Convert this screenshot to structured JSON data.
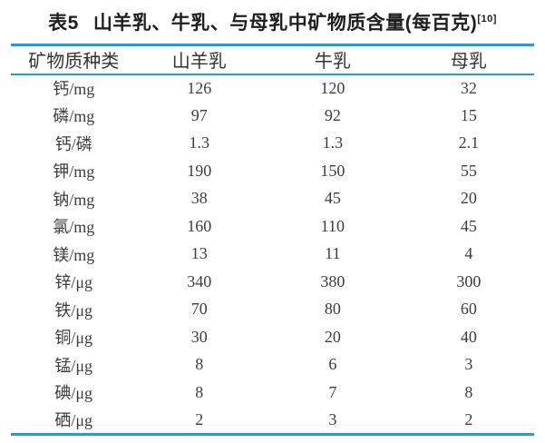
{
  "caption": {
    "prefix": "表5",
    "title": "山羊乳、牛乳、与母乳中矿物质含量(每百克)",
    "citation": "[10]"
  },
  "table": {
    "columns": [
      "矿物质种类",
      "山羊乳",
      "牛乳",
      "母乳"
    ],
    "rows": [
      {
        "label": "钙/mg",
        "values": [
          "126",
          "120",
          "32"
        ]
      },
      {
        "label": "磷/mg",
        "values": [
          "97",
          "92",
          "15"
        ]
      },
      {
        "label": "钙/磷",
        "values": [
          "1.3",
          "1.3",
          "2.1"
        ]
      },
      {
        "label": "钾/mg",
        "values": [
          "190",
          "150",
          "55"
        ]
      },
      {
        "label": "钠/mg",
        "values": [
          "38",
          "45",
          "20"
        ]
      },
      {
        "label": "氯/mg",
        "values": [
          "160",
          "110",
          "45"
        ]
      },
      {
        "label": "镁/mg",
        "values": [
          "13",
          "11",
          "4"
        ]
      },
      {
        "label": "锌/μg",
        "values": [
          "340",
          "380",
          "300"
        ]
      },
      {
        "label": "铁/μg",
        "values": [
          "70",
          "80",
          "60"
        ]
      },
      {
        "label": "铜/μg",
        "values": [
          "30",
          "20",
          "40"
        ]
      },
      {
        "label": "锰/μg",
        "values": [
          "8",
          "6",
          "3"
        ]
      },
      {
        "label": "碘/μg",
        "values": [
          "8",
          "7",
          "8"
        ]
      },
      {
        "label": "硒/μg",
        "values": [
          "2",
          "3",
          "2"
        ]
      }
    ]
  },
  "chart_data": {
    "type": "table",
    "title": "表5 山羊乳、牛乳、与母乳中矿物质含量(每百克)[10]",
    "categories": [
      "钙/mg",
      "磷/mg",
      "钙/磷",
      "钾/mg",
      "钠/mg",
      "氯/mg",
      "镁/mg",
      "锌/μg",
      "铁/μg",
      "铜/μg",
      "锰/μg",
      "碘/μg",
      "硒/μg"
    ],
    "series": [
      {
        "name": "山羊乳",
        "values": [
          126,
          97,
          1.3,
          190,
          38,
          160,
          13,
          340,
          70,
          30,
          8,
          8,
          2
        ]
      },
      {
        "name": "牛乳",
        "values": [
          120,
          92,
          1.3,
          150,
          45,
          110,
          11,
          380,
          80,
          20,
          6,
          7,
          3
        ]
      },
      {
        "name": "母乳",
        "values": [
          32,
          15,
          2.1,
          55,
          20,
          45,
          4,
          300,
          60,
          40,
          3,
          8,
          2
        ]
      }
    ]
  },
  "colors": {
    "rule_blue": "#1b9ed9",
    "text": "#3d3d3d",
    "title_text": "#1f1f1f"
  }
}
